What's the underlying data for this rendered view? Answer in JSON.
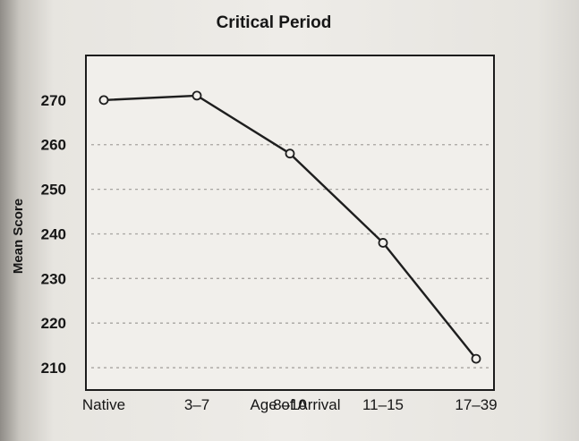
{
  "chart_data": {
    "type": "line",
    "title": "Critical Period",
    "xlabel": "Age of Arrival",
    "ylabel": "Mean Score",
    "categories": [
      "Native",
      "3–7",
      "8–10",
      "11–15",
      "17–39"
    ],
    "series": [
      {
        "name": "Mean Score",
        "values": [
          270,
          271,
          258,
          238,
          212
        ]
      }
    ],
    "yticks": [
      210,
      220,
      230,
      240,
      250,
      260,
      270
    ],
    "ytick_labels": [
      "210",
      "220",
      "230",
      "240",
      "250",
      "260",
      "270"
    ],
    "ylim": [
      205,
      280
    ],
    "grid": true,
    "legend": "none"
  }
}
